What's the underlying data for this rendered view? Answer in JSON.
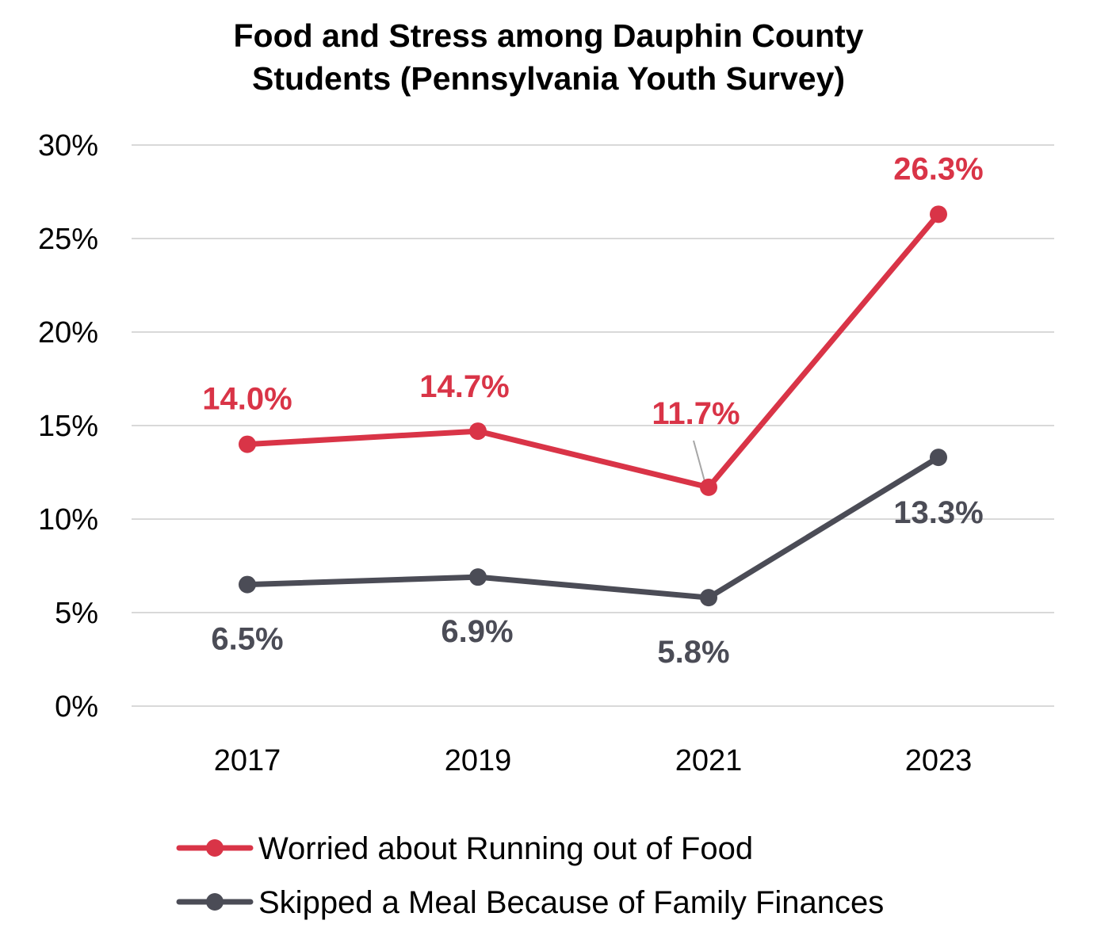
{
  "chart_data": {
    "type": "line",
    "title_line1": "Food and Stress among Dauphin County",
    "title_line2": "Students (Pennsylvania Youth Survey)",
    "categories": [
      "2017",
      "2019",
      "2021",
      "2023"
    ],
    "ylim": [
      0,
      30
    ],
    "yticks": [
      0,
      5,
      10,
      15,
      20,
      25,
      30
    ],
    "ytick_labels": [
      "0%",
      "5%",
      "10%",
      "15%",
      "20%",
      "25%",
      "30%"
    ],
    "grid": true,
    "legend_position": "bottom",
    "series": [
      {
        "name": "Worried about Running out of Food",
        "color": "#d93447",
        "values": [
          14.0,
          14.7,
          11.7,
          26.3
        ],
        "labels": [
          "14.0%",
          "14.7%",
          "11.7%",
          "26.3%"
        ]
      },
      {
        "name": "Skipped a Meal Because of Family Finances",
        "color": "#4b4c56",
        "values": [
          6.5,
          6.9,
          5.8,
          13.3
        ],
        "labels": [
          "6.5%",
          "6.9%",
          "5.8%",
          "13.3%"
        ]
      }
    ]
  }
}
